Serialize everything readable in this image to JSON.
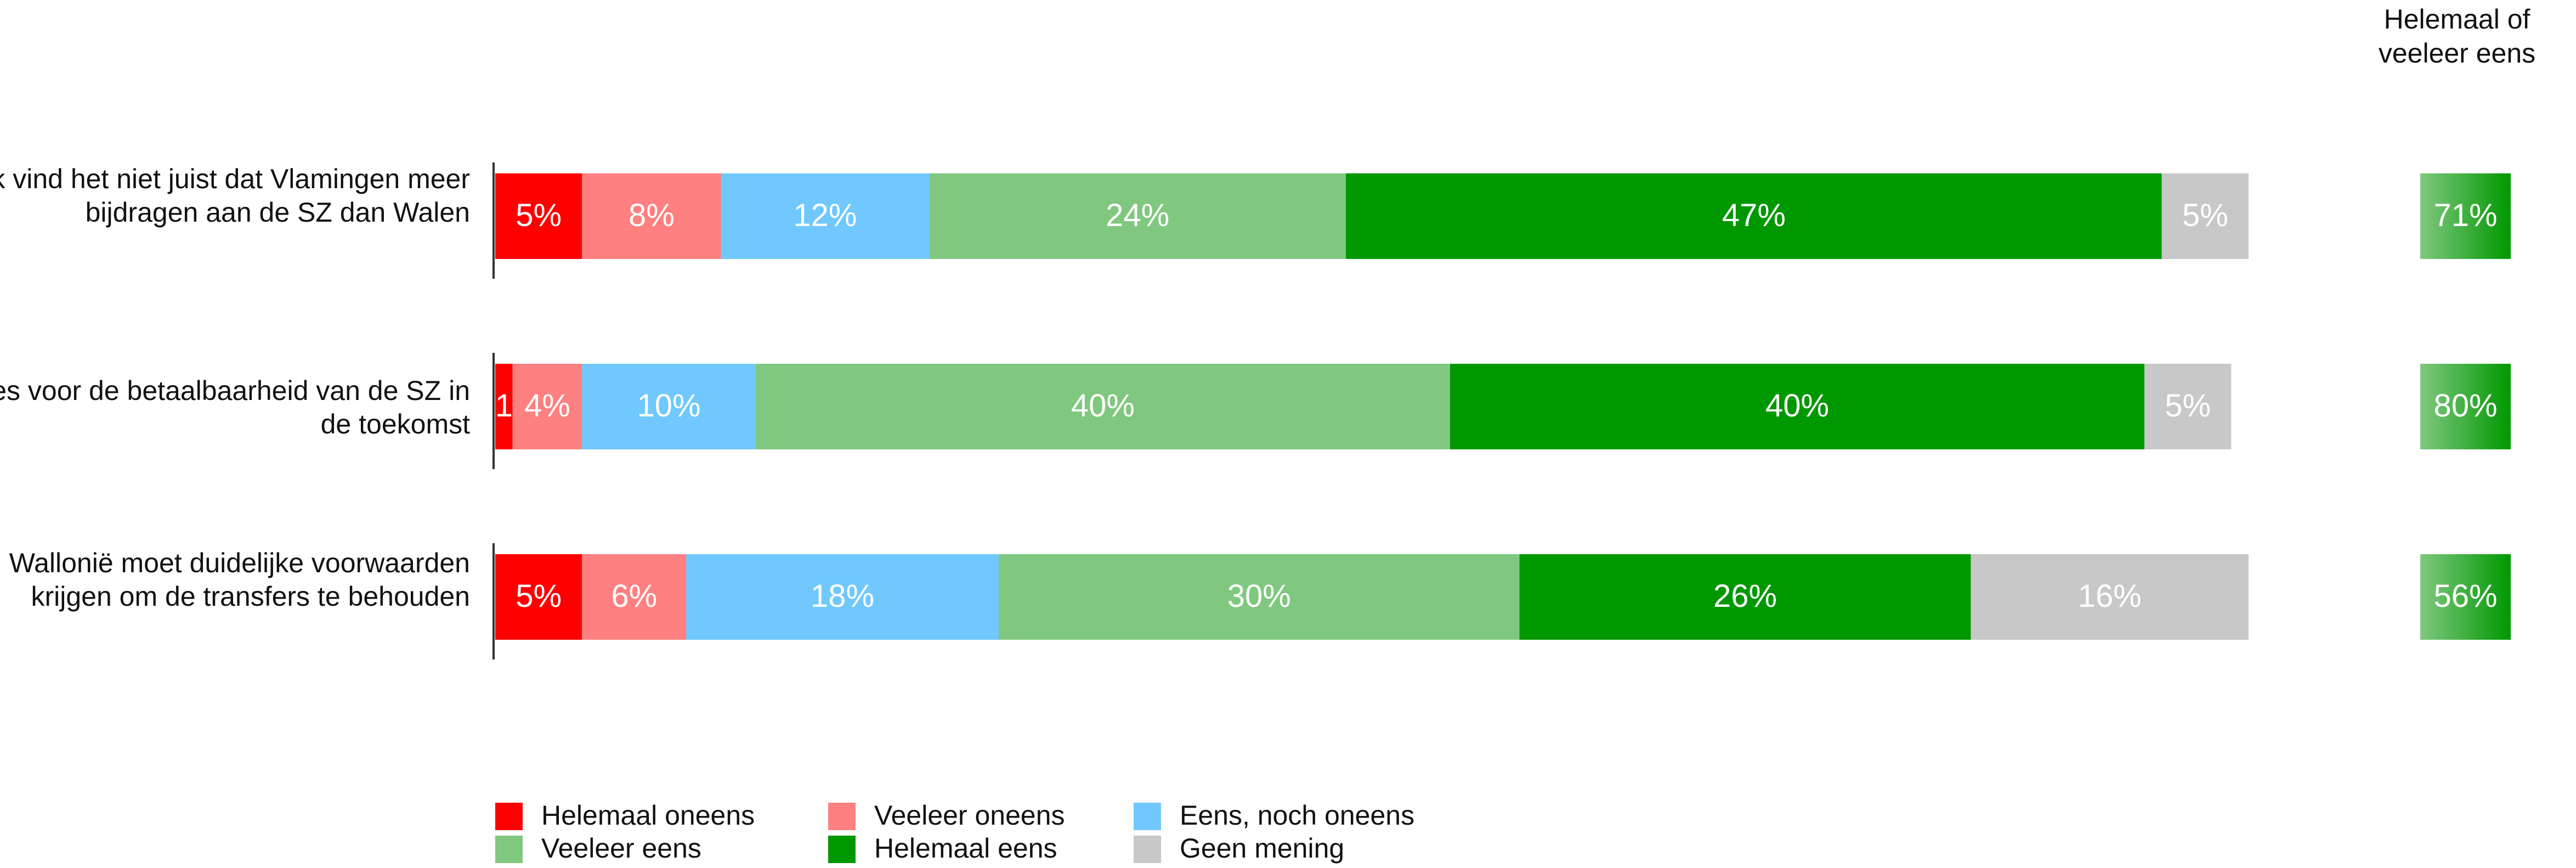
{
  "chart_data": {
    "type": "bar",
    "orientation": "horizontal",
    "stacked": true,
    "total_header": "Helemaal of veeleer eens",
    "categories": [
      "Ik vind het niet juist dat Vlamingen meer bijdragen aan de SZ dan Walen",
      "Ik vrees voor de betaalbaarheid van de SZ in de toekomst",
      "Wallonië moet duidelijke voorwaarden krijgen om de transfers te behouden"
    ],
    "series": [
      {
        "name": "Helemaal oneens",
        "color": "#ff0000",
        "values": [
          5,
          1,
          5
        ],
        "labels": [
          "5%",
          "1",
          "5%"
        ]
      },
      {
        "name": "Veeleer oneens",
        "color": "#ff8080",
        "values": [
          8,
          4,
          6
        ],
        "labels": [
          "8%",
          "4%",
          "6%"
        ]
      },
      {
        "name": "Eens, noch oneens",
        "color": "#70c8ff",
        "values": [
          12,
          10,
          18
        ],
        "labels": [
          "12%",
          "10%",
          "18%"
        ]
      },
      {
        "name": "Veeleer eens",
        "color": "#80c880",
        "values": [
          24,
          40,
          30
        ],
        "labels": [
          "24%",
          "40%",
          "30%"
        ]
      },
      {
        "name": "Helemaal eens",
        "color": "#009800",
        "values": [
          47,
          40,
          26
        ],
        "labels": [
          "47%",
          "40%",
          "26%"
        ]
      },
      {
        "name": "Geen mening",
        "color": "#c8c8c8",
        "values": [
          5,
          5,
          16
        ],
        "labels": [
          "5%",
          "5%",
          "16%"
        ]
      }
    ],
    "totals": {
      "values": [
        71,
        80,
        56
      ],
      "labels": [
        "71%",
        "80%",
        "56%"
      ]
    },
    "xlim": [
      0,
      101
    ]
  }
}
